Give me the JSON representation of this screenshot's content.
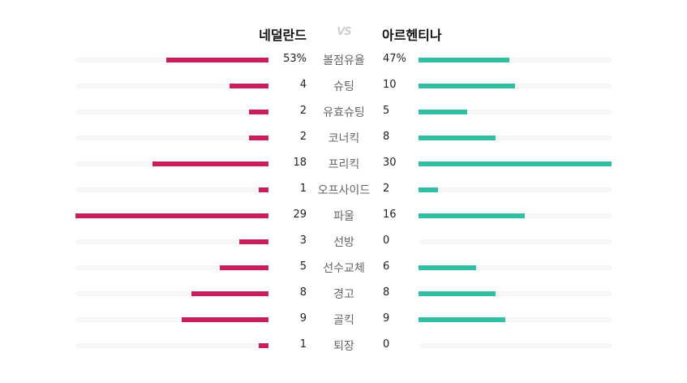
{
  "teams": {
    "home": "네덜란드",
    "vs": "VS",
    "away": "아르헨티나"
  },
  "colors": {
    "home": "#c7215d",
    "away": "#35bea3",
    "track": "#f6f6f6"
  },
  "stats": [
    {
      "label": "볼점유율",
      "home": "53%",
      "away": "47%",
      "home_value": 53,
      "away_value": 47,
      "scale": 100
    },
    {
      "label": "슈팅",
      "home": "4",
      "away": "10",
      "home_value": 4,
      "away_value": 10,
      "scale": 20
    },
    {
      "label": "유효슈팅",
      "home": "2",
      "away": "5",
      "home_value": 2,
      "away_value": 5,
      "scale": 20
    },
    {
      "label": "코너킥",
      "home": "2",
      "away": "8",
      "home_value": 2,
      "away_value": 8,
      "scale": 20
    },
    {
      "label": "프리킥",
      "home": "18",
      "away": "30",
      "home_value": 18,
      "away_value": 30,
      "scale": 30
    },
    {
      "label": "오프사이드",
      "home": "1",
      "away": "2",
      "home_value": 1,
      "away_value": 2,
      "scale": 20
    },
    {
      "label": "파울",
      "home": "29",
      "away": "16",
      "home_value": 29,
      "away_value": 16,
      "scale": 29
    },
    {
      "label": "선방",
      "home": "3",
      "away": "0",
      "home_value": 3,
      "away_value": 0,
      "scale": 20
    },
    {
      "label": "선수교체",
      "home": "5",
      "away": "6",
      "home_value": 5,
      "away_value": 6,
      "scale": 20
    },
    {
      "label": "경고",
      "home": "8",
      "away": "8",
      "home_value": 8,
      "away_value": 8,
      "scale": 20
    },
    {
      "label": "골킥",
      "home": "9",
      "away": "9",
      "home_value": 9,
      "away_value": 9,
      "scale": 20
    },
    {
      "label": "퇴장",
      "home": "1",
      "away": "0",
      "home_value": 1,
      "away_value": 0,
      "scale": 20
    }
  ]
}
